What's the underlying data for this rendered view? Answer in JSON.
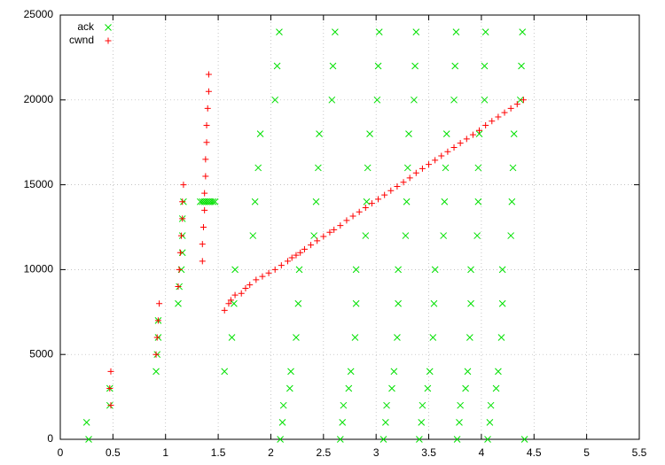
{
  "chart_data": {
    "type": "scatter",
    "xlim": [
      0,
      5.5
    ],
    "xticks": [
      0,
      0.5,
      1,
      1.5,
      2,
      2.5,
      3,
      3.5,
      4,
      4.5,
      5,
      5.5
    ],
    "ylim": [
      0,
      25000
    ],
    "yticks": [
      0,
      5000,
      10000,
      15000,
      20000,
      25000
    ],
    "grid": true,
    "legend_position": "top left",
    "series": [
      {
        "name": "ack",
        "color": "#00e000",
        "marker": "x",
        "x": [
          0.27,
          0.25,
          0.47,
          0.47,
          0.91,
          0.92,
          0.93,
          0.93,
          1.12,
          1.13,
          1.15,
          1.16,
          1.16,
          1.16,
          1.17,
          1.33,
          1.35,
          1.37,
          1.39,
          1.41,
          1.43,
          1.45,
          1.47,
          1.56,
          1.63,
          1.65,
          1.66,
          1.83,
          1.85,
          1.88,
          1.9,
          2.04,
          2.06,
          2.08,
          2.09,
          2.11,
          2.12,
          2.18,
          2.19,
          2.24,
          2.26,
          2.27,
          2.41,
          2.43,
          2.45,
          2.46,
          2.58,
          2.59,
          2.61,
          2.66,
          2.68,
          2.69,
          2.74,
          2.76,
          2.8,
          2.81,
          2.81,
          2.9,
          2.91,
          2.92,
          2.94,
          3.01,
          3.02,
          3.03,
          3.07,
          3.09,
          3.1,
          3.15,
          3.17,
          3.2,
          3.21,
          3.21,
          3.28,
          3.29,
          3.3,
          3.31,
          3.36,
          3.37,
          3.38,
          3.41,
          3.43,
          3.44,
          3.49,
          3.51,
          3.54,
          3.55,
          3.56,
          3.64,
          3.65,
          3.66,
          3.67,
          3.74,
          3.75,
          3.76,
          3.77,
          3.79,
          3.8,
          3.85,
          3.87,
          3.89,
          3.9,
          3.9,
          3.96,
          3.97,
          3.97,
          3.98,
          4.03,
          4.03,
          4.04,
          4.06,
          4.08,
          4.09,
          4.14,
          4.16,
          4.19,
          4.2,
          4.2,
          4.28,
          4.29,
          4.3,
          4.31,
          4.37,
          4.38,
          4.39,
          4.41
        ],
        "values": [
          0,
          1000,
          2000,
          3000,
          4000,
          5000,
          6000,
          7000,
          8000,
          9000,
          10000,
          11000,
          12000,
          13000,
          14000,
          14000,
          14000,
          14000,
          14000,
          14000,
          14000,
          14000,
          14000,
          4000,
          6000,
          8000,
          10000,
          12000,
          14000,
          16000,
          18000,
          20000,
          22000,
          24000,
          0,
          1000,
          2000,
          3000,
          4000,
          6000,
          8000,
          10000,
          12000,
          14000,
          16000,
          18000,
          20000,
          22000,
          24000,
          0,
          1000,
          2000,
          3000,
          4000,
          6000,
          8000,
          10000,
          12000,
          14000,
          16000,
          18000,
          20000,
          22000,
          24000,
          0,
          1000,
          2000,
          3000,
          4000,
          6000,
          8000,
          10000,
          12000,
          14000,
          16000,
          18000,
          20000,
          22000,
          24000,
          0,
          1000,
          2000,
          3000,
          4000,
          6000,
          8000,
          10000,
          12000,
          14000,
          16000,
          18000,
          20000,
          22000,
          24000,
          0,
          1000,
          2000,
          3000,
          4000,
          6000,
          8000,
          10000,
          12000,
          14000,
          16000,
          18000,
          20000,
          22000,
          24000,
          0,
          1000,
          2000,
          3000,
          4000,
          6000,
          8000,
          10000,
          12000,
          14000,
          16000,
          18000,
          20000,
          22000,
          24000,
          0
        ]
      },
      {
        "name": "cwnd",
        "color": "#ff0000",
        "marker": "+",
        "x": [
          0.48,
          0.47,
          0.48,
          0.91,
          0.92,
          0.93,
          0.94,
          1.12,
          1.13,
          1.14,
          1.15,
          1.16,
          1.16,
          1.17,
          1.35,
          1.35,
          1.36,
          1.37,
          1.37,
          1.38,
          1.38,
          1.39,
          1.39,
          1.4,
          1.41,
          1.41,
          1.56,
          1.6,
          1.62,
          1.66,
          1.72,
          1.76,
          1.8,
          1.86,
          1.92,
          1.98,
          2.04,
          2.1,
          2.16,
          2.2,
          2.24,
          2.28,
          2.32,
          2.38,
          2.44,
          2.5,
          2.56,
          2.6,
          2.66,
          2.72,
          2.78,
          2.84,
          2.9,
          2.96,
          3.02,
          3.08,
          3.14,
          3.2,
          3.26,
          3.32,
          3.38,
          3.44,
          3.5,
          3.56,
          3.62,
          3.68,
          3.74,
          3.8,
          3.86,
          3.92,
          3.98,
          4.04,
          4.1,
          4.16,
          4.22,
          4.28,
          4.34,
          4.4
        ],
        "values": [
          2000,
          3000,
          4000,
          5000,
          6000,
          7000,
          8000,
          9000,
          10000,
          11000,
          12000,
          13000,
          14000,
          15000,
          10500,
          11500,
          12500,
          13500,
          14500,
          15500,
          16500,
          17500,
          18500,
          19500,
          20500,
          21500,
          7600,
          8000,
          8200,
          8500,
          8600,
          8900,
          9100,
          9400,
          9600,
          9800,
          10000,
          10250,
          10500,
          10700,
          10850,
          11000,
          11200,
          11450,
          11700,
          11950,
          12200,
          12350,
          12600,
          12900,
          13150,
          13400,
          13650,
          13900,
          14150,
          14400,
          14650,
          14900,
          15150,
          15400,
          15700,
          15950,
          16200,
          16450,
          16700,
          16950,
          17200,
          17450,
          17700,
          17950,
          18200,
          18500,
          18750,
          19000,
          19250,
          19500,
          19750,
          20000
        ]
      }
    ]
  }
}
